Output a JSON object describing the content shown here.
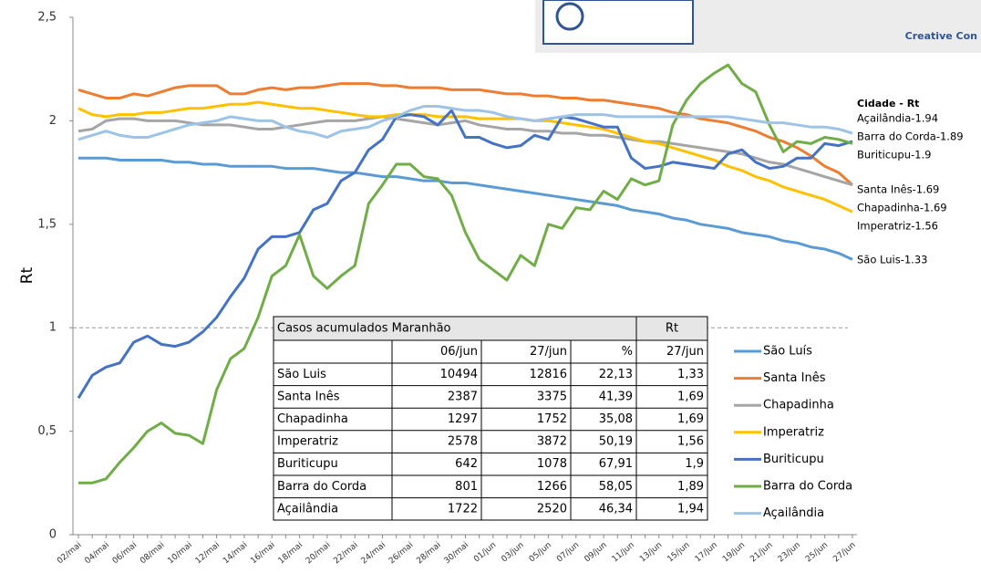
{
  "chart_data": {
    "type": "line",
    "y_label": "Rt",
    "end_label_title": "Cidade - Rt",
    "categories": [
      "02/mai",
      null,
      "04/mai",
      null,
      "06/mai",
      null,
      "08/mai",
      null,
      "10/mai",
      null,
      "12/mai",
      null,
      "14/mai",
      null,
      "16/mai",
      null,
      "18/mai",
      null,
      "20/mai",
      null,
      "22/mai",
      null,
      "24/mai",
      null,
      "26/mai",
      null,
      "28/mai",
      null,
      "30/mai",
      null,
      "01/jun",
      null,
      "03/jun",
      null,
      "05/jun",
      null,
      "07/jun",
      null,
      "09/jun",
      null,
      "11/jun",
      null,
      "13/jun",
      null,
      "15/jun",
      null,
      "17/jun",
      null,
      "19/jun",
      null,
      "21/jun",
      null,
      "23/jun",
      null,
      "25/jun",
      null,
      "27/jun"
    ],
    "ylim": [
      0,
      2.5
    ],
    "yticks": [
      0,
      {
        "value": 0.5,
        "label": "0,5"
      },
      1,
      {
        "value": 1.5,
        "label": "1,5"
      },
      2,
      {
        "value": 2.5,
        "label": "2,5"
      }
    ],
    "reference_line": 1,
    "series": [
      {
        "name": "São Luís",
        "end_label": "São Luis-1.33",
        "color": "#5b9bd5",
        "values": [
          1.82,
          1.82,
          1.82,
          1.81,
          1.81,
          1.81,
          1.81,
          1.8,
          1.8,
          1.79,
          1.79,
          1.78,
          1.78,
          1.78,
          1.78,
          1.77,
          1.77,
          1.77,
          1.76,
          1.75,
          1.75,
          1.74,
          1.73,
          1.73,
          1.72,
          1.71,
          1.71,
          1.7,
          1.7,
          1.69,
          1.68,
          1.67,
          1.66,
          1.65,
          1.64,
          1.63,
          1.62,
          1.61,
          1.6,
          1.59,
          1.57,
          1.56,
          1.55,
          1.53,
          1.52,
          1.5,
          1.49,
          1.48,
          1.46,
          1.45,
          1.44,
          1.42,
          1.41,
          1.39,
          1.38,
          1.36,
          1.33
        ]
      },
      {
        "name": "Santa Inês",
        "end_label": "Santa Inês-1.69",
        "color": "#ed7d31",
        "values": [
          2.15,
          2.13,
          2.11,
          2.11,
          2.13,
          2.12,
          2.14,
          2.16,
          2.17,
          2.17,
          2.17,
          2.13,
          2.13,
          2.15,
          2.16,
          2.15,
          2.16,
          2.16,
          2.17,
          2.18,
          2.18,
          2.18,
          2.17,
          2.17,
          2.16,
          2.16,
          2.16,
          2.15,
          2.15,
          2.15,
          2.14,
          2.13,
          2.13,
          2.12,
          2.12,
          2.11,
          2.11,
          2.1,
          2.1,
          2.09,
          2.08,
          2.07,
          2.06,
          2.04,
          2.03,
          2.01,
          2,
          1.99,
          1.97,
          1.95,
          1.92,
          1.9,
          1.87,
          1.83,
          1.78,
          1.75,
          1.69
        ]
      },
      {
        "name": "Chapadinha",
        "end_label": "Chapadinha-1.69",
        "color": "#a5a5a5",
        "values": [
          1.95,
          1.96,
          2,
          2.01,
          2.01,
          2,
          2,
          2,
          1.99,
          1.98,
          1.98,
          1.98,
          1.97,
          1.96,
          1.96,
          1.97,
          1.98,
          1.99,
          2,
          2,
          2,
          2.01,
          2.02,
          2.01,
          2,
          1.99,
          1.98,
          1.99,
          2,
          1.98,
          1.97,
          1.96,
          1.96,
          1.95,
          1.95,
          1.94,
          1.94,
          1.93,
          1.93,
          1.92,
          1.91,
          1.9,
          1.9,
          1.89,
          1.88,
          1.87,
          1.86,
          1.85,
          1.84,
          1.82,
          1.8,
          1.79,
          1.77,
          1.75,
          1.73,
          1.71,
          1.69
        ]
      },
      {
        "name": "Imperatriz",
        "end_label": "Imperatriz-1.56",
        "color": "#ffc000",
        "values": [
          2.06,
          2.03,
          2.02,
          2.03,
          2.03,
          2.04,
          2.04,
          2.05,
          2.06,
          2.06,
          2.07,
          2.08,
          2.08,
          2.09,
          2.08,
          2.07,
          2.06,
          2.06,
          2.05,
          2.04,
          2.03,
          2.02,
          2.02,
          2.03,
          2.03,
          2.03,
          2.02,
          2.02,
          2.02,
          2.01,
          2.01,
          2.01,
          2.01,
          2,
          2,
          1.99,
          1.98,
          1.97,
          1.96,
          1.94,
          1.92,
          1.9,
          1.89,
          1.87,
          1.85,
          1.83,
          1.81,
          1.78,
          1.76,
          1.73,
          1.71,
          1.68,
          1.66,
          1.64,
          1.62,
          1.59,
          1.56
        ]
      },
      {
        "name": "Buriticupu",
        "end_label": "Buriticupu-1.9",
        "color": "#4472c4",
        "values": [
          0.66,
          0.77,
          0.81,
          0.83,
          0.93,
          0.96,
          0.92,
          0.91,
          0.93,
          0.98,
          1.05,
          1.15,
          1.24,
          1.38,
          1.44,
          1.44,
          1.46,
          1.57,
          1.6,
          1.71,
          1.75,
          1.86,
          1.91,
          2.02,
          2.03,
          2.02,
          1.98,
          2.05,
          1.92,
          1.92,
          1.89,
          1.87,
          1.88,
          1.93,
          1.91,
          2.02,
          2.01,
          1.99,
          1.97,
          1.97,
          1.82,
          1.77,
          1.78,
          1.8,
          1.79,
          1.78,
          1.77,
          1.84,
          1.86,
          1.8,
          1.77,
          1.78,
          1.82,
          1.82,
          1.89,
          1.88,
          1.9
        ]
      },
      {
        "name": "Barra do Corda",
        "end_label": "Barra do Corda-1.89",
        "color": "#70ad47",
        "values": [
          0.25,
          0.25,
          0.27,
          0.35,
          0.42,
          0.5,
          0.54,
          0.49,
          0.48,
          0.44,
          0.7,
          0.85,
          0.9,
          1.05,
          1.25,
          1.3,
          1.45,
          1.25,
          1.19,
          1.25,
          1.3,
          1.6,
          1.69,
          1.79,
          1.79,
          1.73,
          1.72,
          1.64,
          1.46,
          1.33,
          1.28,
          1.23,
          1.35,
          1.3,
          1.5,
          1.48,
          1.58,
          1.57,
          1.66,
          1.62,
          1.72,
          1.69,
          1.71,
          1.98,
          2.1,
          2.18,
          2.23,
          2.27,
          2.18,
          2.14,
          1.98,
          1.85,
          1.9,
          1.89,
          1.92,
          1.91,
          1.89
        ]
      },
      {
        "name": "Açailândia",
        "end_label": "Açailândia-1.94",
        "color": "#9dc3e6",
        "values": [
          1.91,
          1.93,
          1.95,
          1.93,
          1.92,
          1.92,
          1.94,
          1.96,
          1.98,
          1.99,
          2,
          2.02,
          2.01,
          2,
          2,
          1.97,
          1.95,
          1.94,
          1.92,
          1.95,
          1.96,
          1.97,
          2,
          2.02,
          2.05,
          2.07,
          2.07,
          2.06,
          2.05,
          2.05,
          2.04,
          2.02,
          2.01,
          2,
          2.01,
          2.02,
          2.03,
          2.03,
          2.03,
          2.02,
          2.02,
          2.02,
          2.02,
          2.02,
          2.02,
          2.02,
          2.02,
          2.02,
          2.01,
          2,
          1.99,
          1.99,
          1.98,
          1.97,
          1.97,
          1.96,
          1.94
        ]
      }
    ],
    "table": {
      "title": "Casos acumulados Maranhão",
      "rt_title": "Rt",
      "header": [
        "06/jun",
        "27/jun",
        "%",
        "27/jun"
      ],
      "rows": [
        [
          "São Luis",
          "10494",
          "12816",
          "22,13",
          "1,33"
        ],
        [
          "Santa Inês",
          "2387",
          "3375",
          "41,39",
          "1,69"
        ],
        [
          "Chapadinha",
          "1297",
          "1752",
          "35,08",
          "1,69"
        ],
        [
          "Imperatriz",
          "2578",
          "3872",
          "50,19",
          "1,56"
        ],
        [
          "Buriticupu",
          "642",
          "1078",
          "67,91",
          "1,9"
        ],
        [
          "Barra do Corda",
          "801",
          "1266",
          "58,05",
          "1,89"
        ],
        [
          "Açailândia",
          "1722",
          "2520",
          "46,34",
          "1,94"
        ]
      ]
    },
    "logo_text": "Creative Con"
  }
}
